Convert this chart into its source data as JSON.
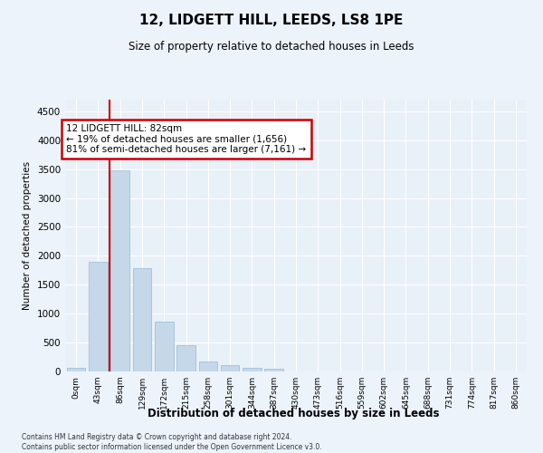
{
  "title": "12, LIDGETT HILL, LEEDS, LS8 1PE",
  "subtitle": "Size of property relative to detached houses in Leeds",
  "xlabel": "Distribution of detached houses by size in Leeds",
  "ylabel": "Number of detached properties",
  "bar_color": "#c5d8ea",
  "bar_edge_color": "#9ab8d0",
  "background_color": "#e8f0f8",
  "grid_color": "#ffffff",
  "annotation_box_color": "#cc0000",
  "vline_color": "#cc0000",
  "property_line_x": 1.5,
  "annotation_title": "12 LIDGETT HILL: 82sqm",
  "annotation_line1": "← 19% of detached houses are smaller (1,656)",
  "annotation_line2": "81% of semi-detached houses are larger (7,161) →",
  "footer": "Contains HM Land Registry data © Crown copyright and database right 2024.\nContains public sector information licensed under the Open Government Licence v3.0.",
  "categories": [
    "0sqm",
    "43sqm",
    "86sqm",
    "129sqm",
    "172sqm",
    "215sqm",
    "258sqm",
    "301sqm",
    "344sqm",
    "387sqm",
    "430sqm",
    "473sqm",
    "516sqm",
    "559sqm",
    "602sqm",
    "645sqm",
    "688sqm",
    "731sqm",
    "774sqm",
    "817sqm",
    "860sqm"
  ],
  "values": [
    55,
    1900,
    3480,
    1790,
    860,
    450,
    165,
    105,
    55,
    40,
    0,
    0,
    0,
    0,
    0,
    0,
    0,
    0,
    0,
    0,
    0
  ],
  "ylim": [
    0,
    4700
  ],
  "yticks": [
    0,
    500,
    1000,
    1500,
    2000,
    2500,
    3000,
    3500,
    4000,
    4500
  ]
}
